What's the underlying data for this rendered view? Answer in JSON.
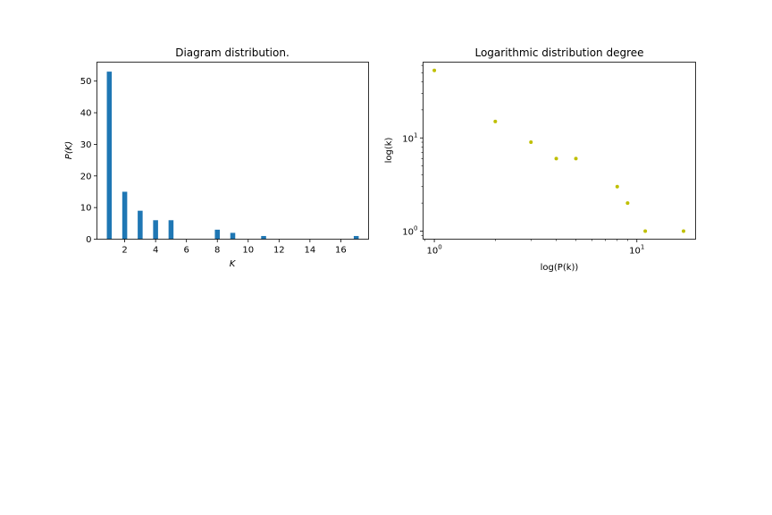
{
  "chart_data": [
    {
      "type": "bar",
      "title": "Diagram distribution.",
      "xlabel": "K",
      "ylabel": "P(K)",
      "x": [
        1,
        2,
        3,
        4,
        5,
        8,
        9,
        11,
        17
      ],
      "values": [
        53,
        15,
        9,
        6,
        6,
        3,
        2,
        1,
        1
      ],
      "xlim": [
        0.2,
        17.8
      ],
      "ylim": [
        0,
        56
      ],
      "xticks": [
        2,
        4,
        6,
        8,
        10,
        12,
        14,
        16
      ],
      "yticks": [
        0,
        10,
        20,
        30,
        40,
        50
      ],
      "grid": false,
      "color": "#1f77b4"
    },
    {
      "type": "scatter",
      "title": "Logarithmic distribution degree",
      "xlabel": "log(P(k))",
      "ylabel": "log(k)",
      "xscale": "log",
      "yscale": "log",
      "x": [
        1,
        2,
        3,
        4,
        5,
        8,
        9,
        11,
        17
      ],
      "y": [
        53,
        15,
        9,
        6,
        6,
        3,
        2,
        1,
        1
      ],
      "xlim": [
        0.88,
        19.5
      ],
      "ylim": [
        0.82,
        65
      ],
      "xticks": [
        {
          "value": 1,
          "base": "10",
          "exp": "0"
        },
        {
          "value": 10,
          "base": "10",
          "exp": "1"
        }
      ],
      "yticks": [
        {
          "value": 1,
          "base": "10",
          "exp": "0"
        },
        {
          "value": 10,
          "base": "10",
          "exp": "1"
        }
      ],
      "grid": false,
      "color": "#bfbf00"
    }
  ]
}
